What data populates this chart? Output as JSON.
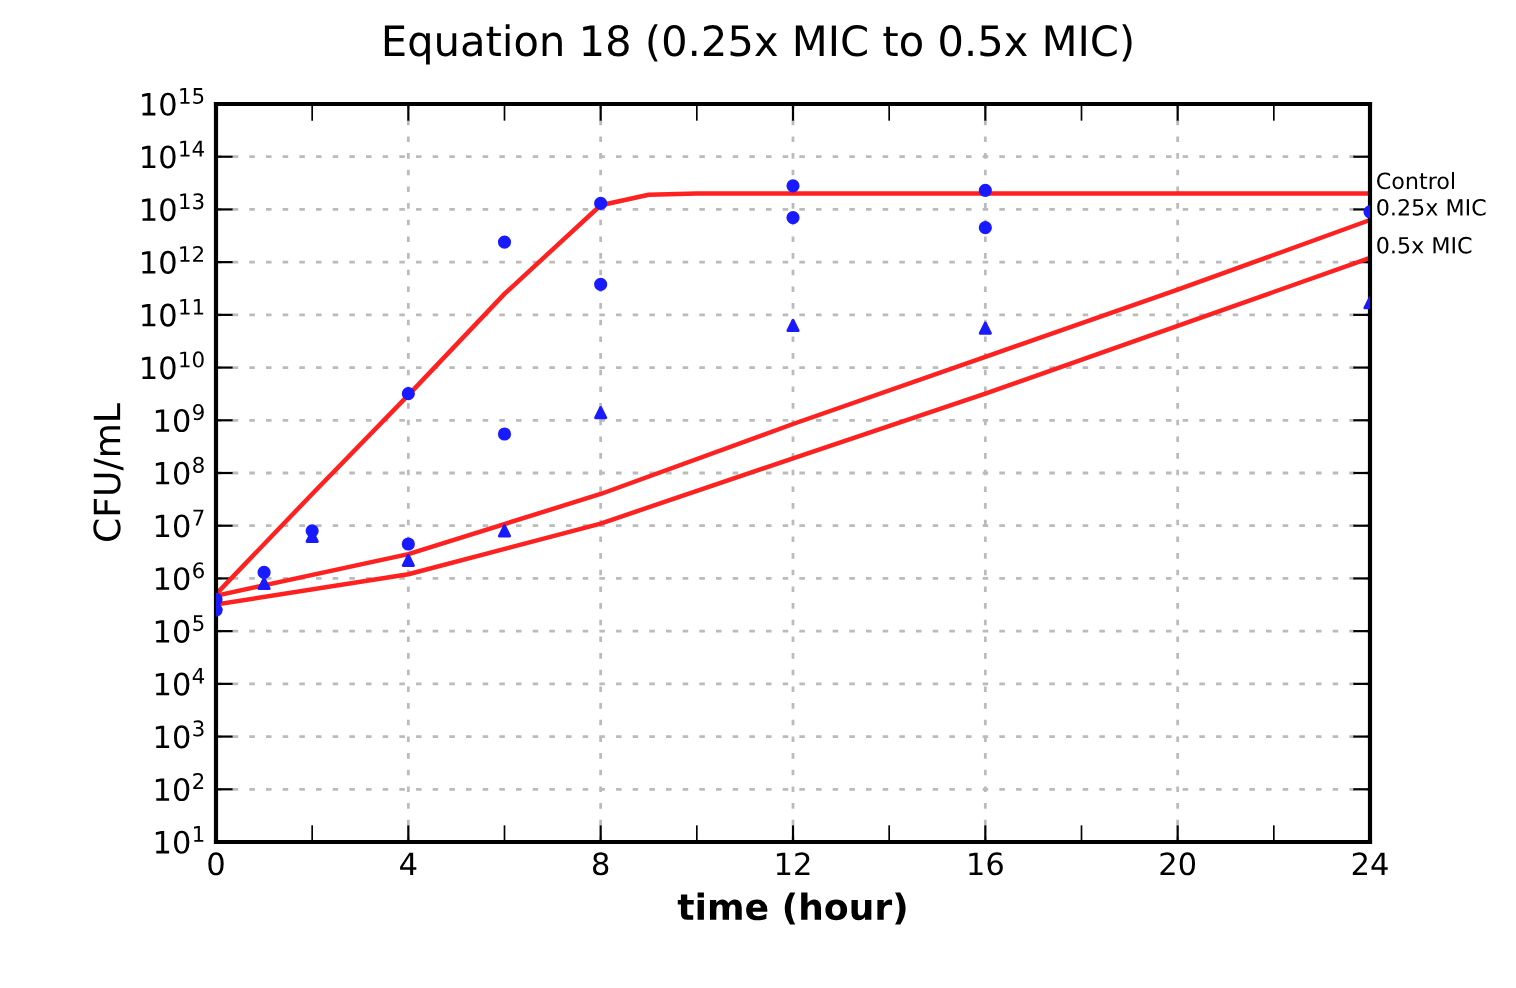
{
  "chart_data": {
    "type": "line",
    "title": "Equation 18 (0.25x MIC to 0.5x MIC)",
    "xlabel": "time (hour)",
    "ylabel": "CFU/mL",
    "log": "y",
    "xlim": [
      0,
      24
    ],
    "xticks": [
      0,
      {
        "value": 2,
        "label": null
      },
      4,
      {
        "value": 6,
        "label": null
      },
      8,
      {
        "value": 10,
        "label": null
      },
      12,
      {
        "value": 14,
        "label": null
      },
      16,
      {
        "value": 18,
        "label": null
      },
      20,
      {
        "value": 22,
        "label": null
      },
      24
    ],
    "ylim": [
      10,
      1000000000000000.0
    ],
    "yticks": [
      {
        "value": 10.0,
        "label": "10$^{1}$"
      },
      {
        "value": 100.0,
        "label": "10$^{2}$"
      },
      {
        "value": 1000.0,
        "label": "10$^{3}$"
      },
      {
        "value": 10000.0,
        "label": "10$^{4}$"
      },
      {
        "value": 100000.0,
        "label": "10$^{5}$"
      },
      {
        "value": 1000000.0,
        "label": "10$^{6}$"
      },
      {
        "value": 10000000.0,
        "label": "10$^{7}$"
      },
      {
        "value": 100000000.0,
        "label": "10$^{8}$"
      },
      {
        "value": 1000000000.0,
        "label": "10$^{9}$"
      },
      {
        "value": 10000000000.0,
        "label": "10$^{10}$"
      },
      {
        "value": 100000000000.0,
        "label": "10$^{11}$"
      },
      {
        "value": 1000000000000.0,
        "label": "10$^{12}$"
      },
      {
        "value": 10000000000000.0,
        "label": "10$^{13}$"
      },
      {
        "value": 100000000000000.0,
        "label": "10$^{14}$"
      },
      {
        "value": 1000000000000000.0,
        "label": "10$^{15}$"
      }
    ],
    "grid": true,
    "legend": false,
    "series": [
      {
        "name": "Control",
        "color": "#ff2020",
        "x": [
          0,
          2,
          4,
          6,
          8,
          9,
          10,
          24
        ],
        "values": [
          500000.0,
          40000000.0,
          3000000000.0,
          250000000000.0,
          12000000000000.0,
          19000000000000.0,
          20000000000000.0,
          20000000000000.0
        ]
      },
      {
        "name": "0.25x MIC",
        "color": "#ff2020",
        "x": [
          0,
          4,
          8,
          12,
          16,
          20,
          24
        ],
        "values": [
          470000.0,
          2900000.0,
          40000000.0,
          850000000.0,
          16000000000.0,
          300000000000.0,
          6300000000000.0
        ]
      },
      {
        "name": "0.5x MIC",
        "color": "#ff2020",
        "x": [
          0,
          4,
          8,
          12,
          16,
          20,
          24
        ],
        "values": [
          320000.0,
          1200000.0,
          11000000.0,
          190000000.0,
          3200000000.0,
          62000000000.0,
          1200000000000.0
        ]
      },
      {
        "type": "scatter",
        "marker": "circle",
        "color": "#1a1aff",
        "x": [
          0,
          0,
          1,
          2,
          4,
          4,
          6,
          6,
          8,
          8,
          12,
          12,
          16,
          16,
          24
        ],
        "values": [
          400000.0,
          250000.0,
          1300000.0,
          8000000.0,
          4500000.0,
          3200000000.0,
          2400000000000.0,
          550000000.0,
          13000000000000.0,
          380000000000.0,
          28000000000000.0,
          7000000000000.0,
          23000000000000.0,
          4500000000000.0,
          9000000000000.0
        ]
      },
      {
        "type": "scatter",
        "marker": "triangle",
        "color": "#1a1aff",
        "x": [
          0,
          1,
          2,
          4,
          6,
          8,
          12,
          16,
          24
        ],
        "values": [
          320000.0,
          800000.0,
          6300000.0,
          2200000.0,
          8000000.0,
          1400000000.0,
          63000000000.0,
          56000000000.0,
          170000000000.0
        ]
      }
    ]
  }
}
